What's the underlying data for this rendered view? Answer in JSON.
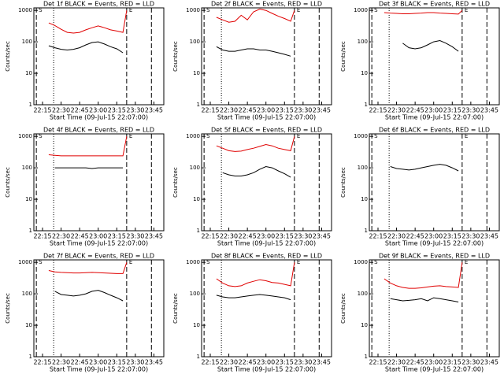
{
  "chart_data": [
    {
      "type": "line",
      "title": "Det 1f BLACK = Events, RED = LLD",
      "xlabel": "Start Time (09-Jul-15 22:07:00)",
      "ylabel": "Counts/sec",
      "log_y": true,
      "x": [
        20,
        25,
        30,
        35,
        40,
        45,
        50,
        55,
        60,
        65,
        70,
        75,
        80,
        83
      ],
      "xlim": [
        8,
        113
      ],
      "xticks": [
        {
          "value": 15,
          "label": "22:15"
        },
        {
          "value": 30,
          "label": "22:30"
        },
        {
          "value": 45,
          "label": "22:45"
        },
        {
          "value": 60,
          "label": "23:00"
        },
        {
          "value": 75,
          "label": "23:15"
        },
        {
          "value": 90,
          "label": "23:30"
        },
        {
          "value": 105,
          "label": "23:45"
        }
      ],
      "ylim": [
        1,
        1200
      ],
      "yticks": [
        1,
        10,
        100,
        1000
      ],
      "vlines": [
        {
          "x": 10,
          "style": "dashed"
        },
        {
          "x": 24,
          "style": "dotted"
        },
        {
          "x": 83,
          "style": "dashed"
        },
        {
          "x": 103,
          "style": "dashed"
        }
      ],
      "annotations": [
        {
          "text": "S",
          "x": 10
        },
        {
          "text": "E",
          "x": 83
        }
      ],
      "series": [
        {
          "name": "Events",
          "color": "#000000",
          "values": [
            75,
            65,
            58,
            55,
            58,
            65,
            80,
            95,
            100,
            85,
            70,
            60,
            45,
            null
          ]
        },
        {
          "name": "LLD",
          "color": "#e00000",
          "values": [
            400,
            330,
            250,
            200,
            190,
            200,
            240,
            280,
            320,
            280,
            240,
            220,
            200,
            1000
          ]
        }
      ]
    },
    {
      "type": "line",
      "title": "Det 2f BLACK = Events, RED = LLD",
      "xlabel": "Start Time (09-Jul-15 22:07:00)",
      "ylabel": "Counts/sec",
      "log_y": true,
      "x": [
        20,
        25,
        30,
        35,
        40,
        45,
        50,
        55,
        60,
        65,
        70,
        75,
        80,
        83
      ],
      "xlim": [
        8,
        113
      ],
      "xticks": [
        {
          "value": 15,
          "label": "22:15"
        },
        {
          "value": 30,
          "label": "22:30"
        },
        {
          "value": 45,
          "label": "22:45"
        },
        {
          "value": 60,
          "label": "23:00"
        },
        {
          "value": 75,
          "label": "23:15"
        },
        {
          "value": 90,
          "label": "23:30"
        },
        {
          "value": 105,
          "label": "23:45"
        }
      ],
      "ylim": [
        1,
        1200
      ],
      "yticks": [
        1,
        10,
        100,
        1000
      ],
      "vlines": [
        {
          "x": 10,
          "style": "dashed"
        },
        {
          "x": 24,
          "style": "dotted"
        },
        {
          "x": 83,
          "style": "dashed"
        },
        {
          "x": 103,
          "style": "dashed"
        }
      ],
      "annotations": [
        {
          "text": "S",
          "x": 10
        },
        {
          "text": "E",
          "x": 83
        }
      ],
      "series": [
        {
          "name": "Events",
          "color": "#000000",
          "values": [
            70,
            55,
            50,
            50,
            55,
            60,
            60,
            55,
            55,
            50,
            45,
            40,
            35,
            null
          ]
        },
        {
          "name": "LLD",
          "color": "#e00000",
          "values": [
            600,
            500,
            420,
            450,
            700,
            500,
            900,
            1100,
            1000,
            800,
            650,
            550,
            450,
            1000
          ]
        }
      ]
    },
    {
      "type": "line",
      "title": "Det 3f BLACK = Events, RED = LLD",
      "xlabel": "Start Time (09-Jul-15 22:07:00)",
      "ylabel": "Counts/sec",
      "log_y": true,
      "x": [
        20,
        25,
        30,
        35,
        40,
        45,
        50,
        55,
        60,
        65,
        70,
        75,
        80,
        83
      ],
      "xlim": [
        8,
        113
      ],
      "xticks": [
        {
          "value": 15,
          "label": "22:15"
        },
        {
          "value": 30,
          "label": "22:30"
        },
        {
          "value": 45,
          "label": "22:45"
        },
        {
          "value": 60,
          "label": "23:00"
        },
        {
          "value": 75,
          "label": "23:15"
        },
        {
          "value": 90,
          "label": "23:30"
        },
        {
          "value": 105,
          "label": "23:45"
        }
      ],
      "ylim": [
        1,
        1200
      ],
      "yticks": [
        1,
        10,
        100,
        1000
      ],
      "vlines": [
        {
          "x": 10,
          "style": "dashed"
        },
        {
          "x": 24,
          "style": "dotted"
        },
        {
          "x": 83,
          "style": "dashed"
        },
        {
          "x": 103,
          "style": "dashed"
        }
      ],
      "annotations": [
        {
          "text": "S",
          "x": 10
        },
        {
          "text": "E",
          "x": 83
        }
      ],
      "series": [
        {
          "name": "Events",
          "color": "#000000",
          "values": [
            null,
            null,
            null,
            90,
            65,
            60,
            65,
            80,
            100,
            110,
            90,
            70,
            50,
            null
          ]
        },
        {
          "name": "LLD",
          "color": "#e00000",
          "values": [
            850,
            820,
            800,
            780,
            780,
            800,
            820,
            850,
            850,
            820,
            800,
            780,
            760,
            1000
          ]
        }
      ]
    },
    {
      "type": "line",
      "title": "Det 4f BLACK = Events, RED = LLD",
      "xlabel": "Start Time (09-Jul-15 22:07:00)",
      "ylabel": "Counts/sec",
      "log_y": true,
      "x": [
        20,
        25,
        30,
        35,
        40,
        45,
        50,
        55,
        60,
        65,
        70,
        75,
        80,
        83
      ],
      "xlim": [
        8,
        113
      ],
      "xticks": [
        {
          "value": 15,
          "label": "22:15"
        },
        {
          "value": 30,
          "label": "22:30"
        },
        {
          "value": 45,
          "label": "22:45"
        },
        {
          "value": 60,
          "label": "23:00"
        },
        {
          "value": 75,
          "label": "23:15"
        },
        {
          "value": 90,
          "label": "23:30"
        },
        {
          "value": 105,
          "label": "23:45"
        }
      ],
      "ylim": [
        1,
        1200
      ],
      "yticks": [
        1,
        10,
        100,
        1000
      ],
      "vlines": [
        {
          "x": 10,
          "style": "dashed"
        },
        {
          "x": 24,
          "style": "dotted"
        },
        {
          "x": 83,
          "style": "dashed"
        },
        {
          "x": 103,
          "style": "dashed"
        }
      ],
      "annotations": [
        {
          "text": "S",
          "x": 10
        },
        {
          "text": "E",
          "x": 83
        }
      ],
      "series": [
        {
          "name": "Events",
          "color": "#000000",
          "values": [
            null,
            100,
            100,
            100,
            100,
            100,
            100,
            95,
            100,
            100,
            100,
            100,
            100,
            null
          ]
        },
        {
          "name": "LLD",
          "color": "#e00000",
          "values": [
            260,
            250,
            240,
            240,
            240,
            240,
            240,
            240,
            240,
            240,
            240,
            240,
            240,
            1000
          ]
        }
      ]
    },
    {
      "type": "line",
      "title": "Det 5f BLACK = Events, RED = LLD",
      "xlabel": "Start Time (09-Jul-15 22:07:00)",
      "ylabel": "Counts/sec",
      "log_y": true,
      "x": [
        20,
        25,
        30,
        35,
        40,
        45,
        50,
        55,
        60,
        65,
        70,
        75,
        80,
        83
      ],
      "xlim": [
        8,
        113
      ],
      "xticks": [
        {
          "value": 15,
          "label": "22:15"
        },
        {
          "value": 30,
          "label": "22:30"
        },
        {
          "value": 45,
          "label": "22:45"
        },
        {
          "value": 60,
          "label": "23:00"
        },
        {
          "value": 75,
          "label": "23:15"
        },
        {
          "value": 90,
          "label": "23:30"
        },
        {
          "value": 105,
          "label": "23:45"
        }
      ],
      "ylim": [
        1,
        1200
      ],
      "yticks": [
        1,
        10,
        100,
        1000
      ],
      "vlines": [
        {
          "x": 10,
          "style": "dashed"
        },
        {
          "x": 24,
          "style": "dotted"
        },
        {
          "x": 83,
          "style": "dashed"
        },
        {
          "x": 103,
          "style": "dashed"
        }
      ],
      "annotations": [
        {
          "text": "S",
          "x": 10
        },
        {
          "text": "E",
          "x": 83
        }
      ],
      "series": [
        {
          "name": "Events",
          "color": "#000000",
          "values": [
            null,
            70,
            60,
            55,
            55,
            60,
            70,
            90,
            110,
            100,
            80,
            65,
            50,
            null
          ]
        },
        {
          "name": "LLD",
          "color": "#e00000",
          "values": [
            500,
            420,
            350,
            330,
            340,
            380,
            420,
            480,
            550,
            500,
            420,
            380,
            350,
            1000
          ]
        }
      ]
    },
    {
      "type": "line",
      "title": "Det 6f BLACK = Events, RED = LLD",
      "xlabel": "Start Time (09-Jul-15 22:07:00)",
      "ylabel": "Counts/sec",
      "log_y": true,
      "x": [
        20,
        25,
        30,
        35,
        40,
        45,
        50,
        55,
        60,
        65,
        70,
        75,
        80,
        83
      ],
      "xlim": [
        8,
        113
      ],
      "xticks": [
        {
          "value": 15,
          "label": "22:15"
        },
        {
          "value": 30,
          "label": "22:30"
        },
        {
          "value": 45,
          "label": "22:45"
        },
        {
          "value": 60,
          "label": "23:00"
        },
        {
          "value": 75,
          "label": "23:15"
        },
        {
          "value": 90,
          "label": "23:30"
        },
        {
          "value": 105,
          "label": "23:45"
        }
      ],
      "ylim": [
        1,
        1200
      ],
      "yticks": [
        1,
        10,
        100,
        1000
      ],
      "vlines": [
        {
          "x": 10,
          "style": "dashed"
        },
        {
          "x": 24,
          "style": "dotted"
        },
        {
          "x": 83,
          "style": "dashed"
        },
        {
          "x": 103,
          "style": "dashed"
        }
      ],
      "annotations": [
        {
          "text": "S",
          "x": 10
        },
        {
          "text": "E",
          "x": 83
        }
      ],
      "series": [
        {
          "name": "Events",
          "color": "#000000",
          "values": [
            null,
            110,
            95,
            90,
            85,
            90,
            100,
            110,
            120,
            130,
            120,
            100,
            80,
            null
          ]
        }
      ]
    },
    {
      "type": "line",
      "title": "Det 7f BLACK = Events, RED = LLD",
      "xlabel": "Start Time (09-Jul-15 22:07:00)",
      "ylabel": "Counts/sec",
      "log_y": true,
      "x": [
        20,
        25,
        30,
        35,
        40,
        45,
        50,
        55,
        60,
        65,
        70,
        75,
        80,
        83
      ],
      "xlim": [
        8,
        113
      ],
      "xticks": [
        {
          "value": 15,
          "label": "22:15"
        },
        {
          "value": 30,
          "label": "22:30"
        },
        {
          "value": 45,
          "label": "22:45"
        },
        {
          "value": 60,
          "label": "23:00"
        },
        {
          "value": 75,
          "label": "23:15"
        },
        {
          "value": 90,
          "label": "23:30"
        },
        {
          "value": 105,
          "label": "23:45"
        }
      ],
      "ylim": [
        1,
        1200
      ],
      "yticks": [
        1,
        10,
        100,
        1000
      ],
      "vlines": [
        {
          "x": 10,
          "style": "dashed"
        },
        {
          "x": 24,
          "style": "dotted"
        },
        {
          "x": 83,
          "style": "dashed"
        },
        {
          "x": 103,
          "style": "dashed"
        }
      ],
      "annotations": [
        {
          "text": "S",
          "x": 10
        },
        {
          "text": "E",
          "x": 83
        }
      ],
      "series": [
        {
          "name": "Events",
          "color": "#000000",
          "values": [
            null,
            120,
            95,
            90,
            85,
            90,
            100,
            120,
            130,
            110,
            90,
            75,
            60,
            null
          ]
        },
        {
          "name": "LLD",
          "color": "#e00000",
          "values": [
            550,
            500,
            480,
            470,
            460,
            460,
            470,
            480,
            470,
            460,
            450,
            440,
            440,
            1000
          ]
        }
      ]
    },
    {
      "type": "line",
      "title": "Det 8f BLACK = Events, RED = LLD",
      "xlabel": "Start Time (09-Jul-15 22:07:00)",
      "ylabel": "Counts/sec",
      "log_y": true,
      "x": [
        20,
        25,
        30,
        35,
        40,
        45,
        50,
        55,
        60,
        65,
        70,
        75,
        80,
        83
      ],
      "xlim": [
        8,
        113
      ],
      "xticks": [
        {
          "value": 15,
          "label": "22:15"
        },
        {
          "value": 30,
          "label": "22:30"
        },
        {
          "value": 45,
          "label": "22:45"
        },
        {
          "value": 60,
          "label": "23:00"
        },
        {
          "value": 75,
          "label": "23:15"
        },
        {
          "value": 90,
          "label": "23:30"
        },
        {
          "value": 105,
          "label": "23:45"
        }
      ],
      "ylim": [
        1,
        1200
      ],
      "yticks": [
        1,
        10,
        100,
        1000
      ],
      "vlines": [
        {
          "x": 10,
          "style": "dashed"
        },
        {
          "x": 24,
          "style": "dotted"
        },
        {
          "x": 83,
          "style": "dashed"
        },
        {
          "x": 103,
          "style": "dashed"
        }
      ],
      "annotations": [
        {
          "text": "S",
          "x": 10
        },
        {
          "text": "E",
          "x": 83
        }
      ],
      "series": [
        {
          "name": "Events",
          "color": "#000000",
          "values": [
            90,
            80,
            75,
            75,
            80,
            85,
            90,
            95,
            90,
            85,
            80,
            75,
            65,
            null
          ]
        },
        {
          "name": "LLD",
          "color": "#e00000",
          "values": [
            300,
            220,
            180,
            170,
            180,
            220,
            250,
            280,
            260,
            230,
            220,
            200,
            180,
            1000
          ]
        }
      ]
    },
    {
      "type": "line",
      "title": "Det 9f BLACK = Events, RED = LLD",
      "xlabel": "Start Time (09-Jul-15 22:07:00)",
      "ylabel": "Counts/sec",
      "log_y": true,
      "x": [
        20,
        25,
        30,
        35,
        40,
        45,
        50,
        55,
        60,
        65,
        70,
        75,
        80,
        83
      ],
      "xlim": [
        8,
        113
      ],
      "xticks": [
        {
          "value": 15,
          "label": "22:15"
        },
        {
          "value": 30,
          "label": "22:30"
        },
        {
          "value": 45,
          "label": "22:45"
        },
        {
          "value": 60,
          "label": "23:00"
        },
        {
          "value": 75,
          "label": "23:15"
        },
        {
          "value": 90,
          "label": "23:30"
        },
        {
          "value": 105,
          "label": "23:45"
        }
      ],
      "ylim": [
        1,
        1200
      ],
      "yticks": [
        1,
        10,
        100,
        1000
      ],
      "vlines": [
        {
          "x": 10,
          "style": "dashed"
        },
        {
          "x": 24,
          "style": "dotted"
        },
        {
          "x": 83,
          "style": "dashed"
        },
        {
          "x": 103,
          "style": "dashed"
        }
      ],
      "annotations": [
        {
          "text": "S",
          "x": 10
        },
        {
          "text": "E",
          "x": 83
        }
      ],
      "series": [
        {
          "name": "Events",
          "color": "#000000",
          "values": [
            null,
            70,
            65,
            60,
            62,
            65,
            70,
            60,
            75,
            70,
            65,
            60,
            55,
            null
          ]
        },
        {
          "name": "LLD",
          "color": "#e00000",
          "values": [
            300,
            220,
            180,
            160,
            150,
            150,
            155,
            165,
            175,
            180,
            170,
            165,
            160,
            1000
          ]
        }
      ]
    }
  ]
}
